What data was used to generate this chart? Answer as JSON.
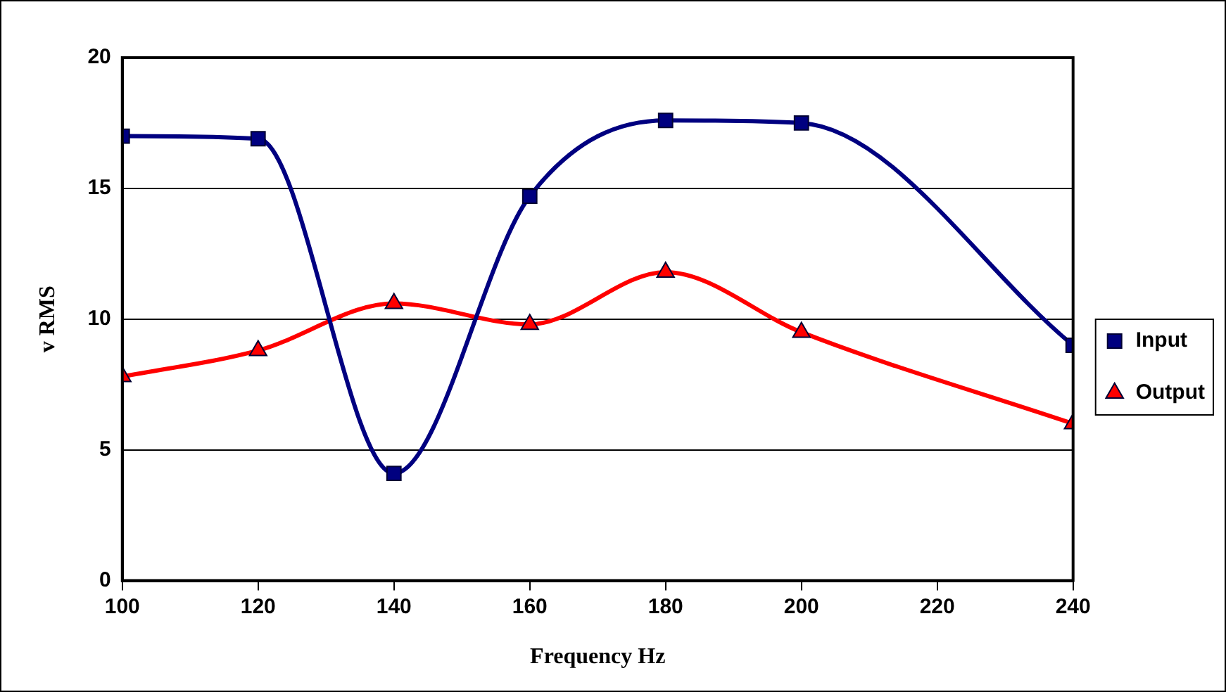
{
  "chart_data": {
    "type": "line",
    "xlabel": "Frequency Hz",
    "ylabel": "v RMS",
    "x": [
      100,
      120,
      140,
      160,
      180,
      200,
      240
    ],
    "series": [
      {
        "name": "Input",
        "color": "#000080",
        "marker": "square",
        "values": [
          17.0,
          16.9,
          4.1,
          14.7,
          17.6,
          17.5,
          9.0
        ]
      },
      {
        "name": "Output",
        "color": "#ff0000",
        "marker": "triangle",
        "values": [
          7.8,
          8.8,
          10.6,
          9.8,
          11.8,
          9.5,
          6.0
        ]
      }
    ],
    "xlim": [
      100,
      240
    ],
    "xticks": [
      100,
      120,
      140,
      160,
      180,
      200,
      220,
      240
    ],
    "ylim": [
      0,
      20
    ],
    "yticks": [
      0,
      5,
      10,
      15,
      20
    ],
    "grid": "y",
    "legend": "right"
  }
}
